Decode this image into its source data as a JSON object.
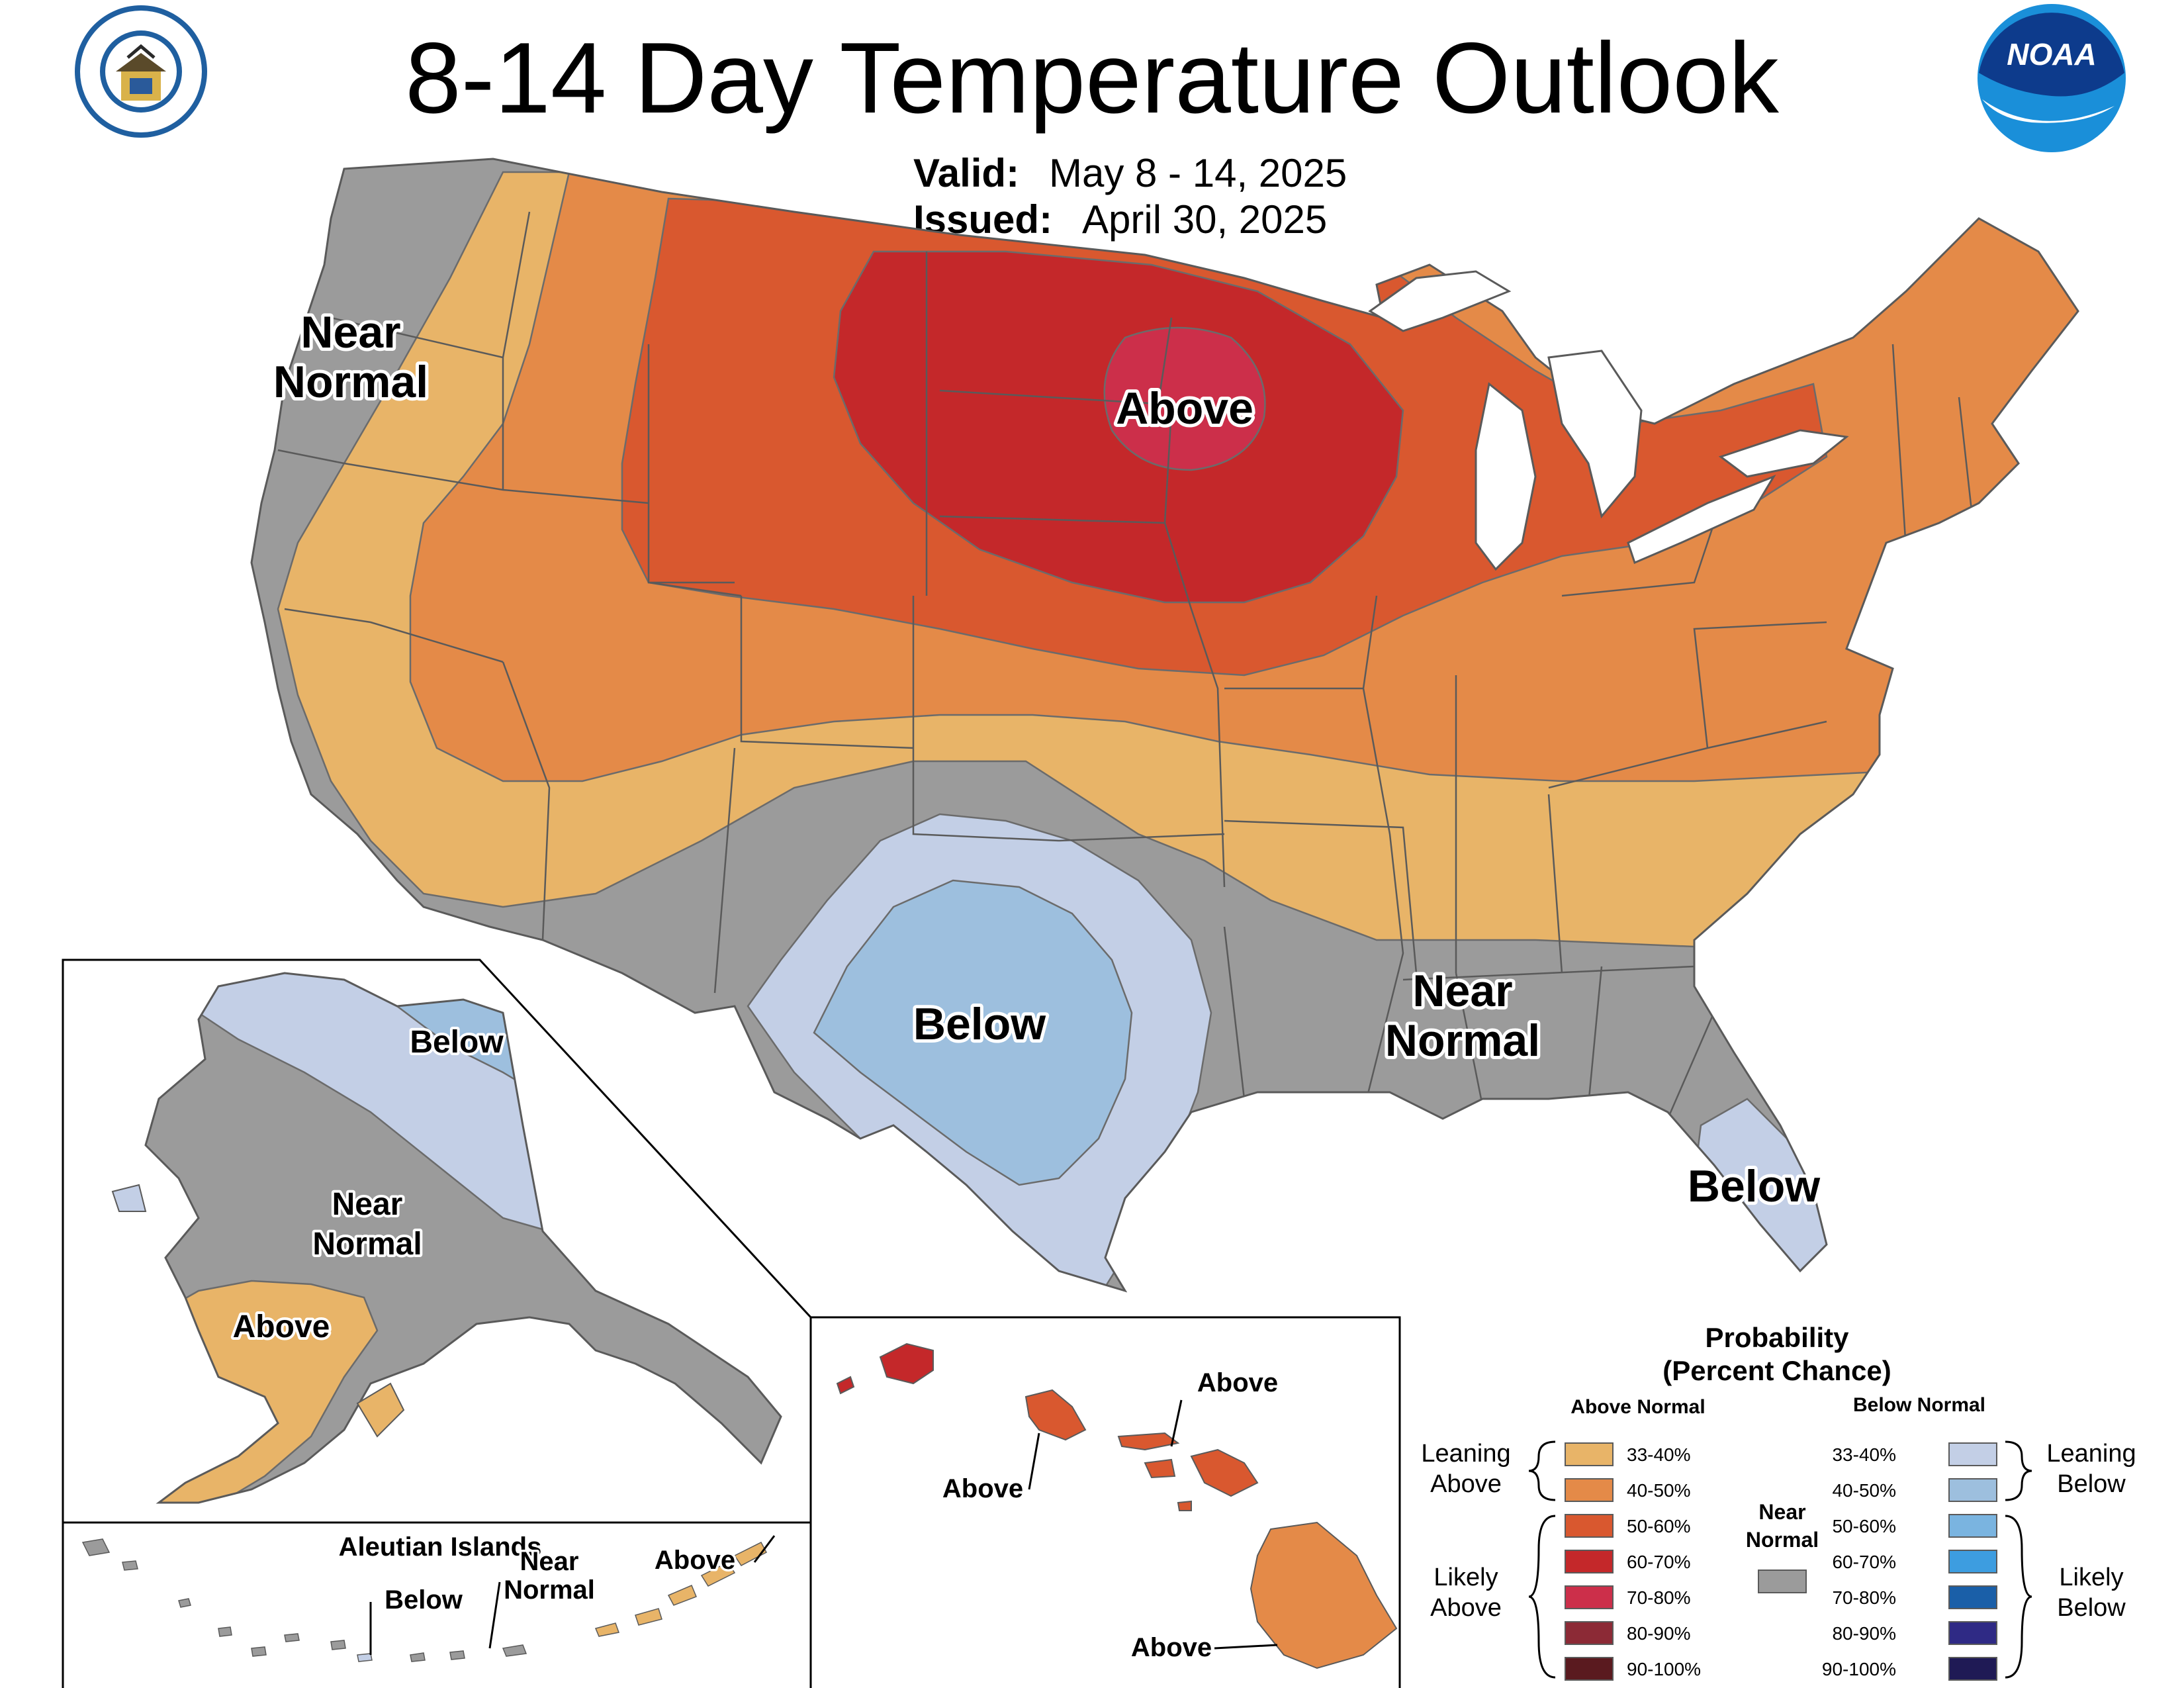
{
  "title": "8-14 Day Temperature Outlook",
  "valid_label": "Valid:",
  "valid_value": "May 8 - 14, 2025",
  "issued_label": "Issued:",
  "issued_value": "April 30, 2025",
  "agency_logos": [
    {
      "name": "department-of-commerce-seal",
      "text": "DEPARTMENT OF COMMERCE · UNITED STATES OF AMERICA"
    },
    {
      "name": "noaa-logo",
      "text": "NOAA"
    }
  ],
  "colors": {
    "above_33_40": "#e8b468",
    "above_40_50": "#e48a48",
    "above_50_60": "#d9582f",
    "above_60_70": "#c4282a",
    "above_70_80": "#cc2f4a",
    "above_80_90": "#8c2a36",
    "above_90_100": "#5a1a1f",
    "near_normal": "#9b9b9b",
    "below_33_40": "#c3cfe6",
    "below_40_50": "#9dbfde",
    "below_50_60": "#7ab4e0",
    "below_60_70": "#3d9de0",
    "below_70_80": "#1a5fa8",
    "below_80_90": "#2f2a85",
    "below_90_100": "#1f1a55"
  },
  "conus_labels": {
    "near_normal_west_1": "Near",
    "near_normal_west_2": "Normal",
    "above_north": "Above",
    "below_south": "Below",
    "near_normal_south_1": "Near",
    "near_normal_south_2": "Normal",
    "below_florida": "Below"
  },
  "alaska_labels": {
    "below": "Below",
    "near_normal_1": "Near",
    "near_normal_2": "Normal",
    "above": "Above"
  },
  "aleutian_labels": {
    "title": "Aleutian Islands",
    "below": "Below",
    "near_normal_1": "Near",
    "near_normal_2": "Normal",
    "above": "Above"
  },
  "hawaii_labels": {
    "above_maui": "Above",
    "above_oahu": "Above",
    "above_big_island": "Above"
  },
  "legend": {
    "title_1": "Probability",
    "title_2": "(Percent Chance)",
    "above_header": "Above Normal",
    "below_header": "Below Normal",
    "near_normal_1": "Near",
    "near_normal_2": "Normal",
    "leaning_above_1": "Leaning",
    "leaning_above_2": "Above",
    "likely_above_1": "Likely",
    "likely_above_2": "Above",
    "leaning_below_1": "Leaning",
    "leaning_below_2": "Below",
    "likely_below_1": "Likely",
    "likely_below_2": "Below",
    "above_rows": [
      "33-40%",
      "40-50%",
      "50-60%",
      "60-70%",
      "70-80%",
      "80-90%",
      "90-100%"
    ],
    "below_rows": [
      "33-40%",
      "40-50%",
      "50-60%",
      "60-70%",
      "70-80%",
      "80-90%",
      "90-100%"
    ]
  }
}
